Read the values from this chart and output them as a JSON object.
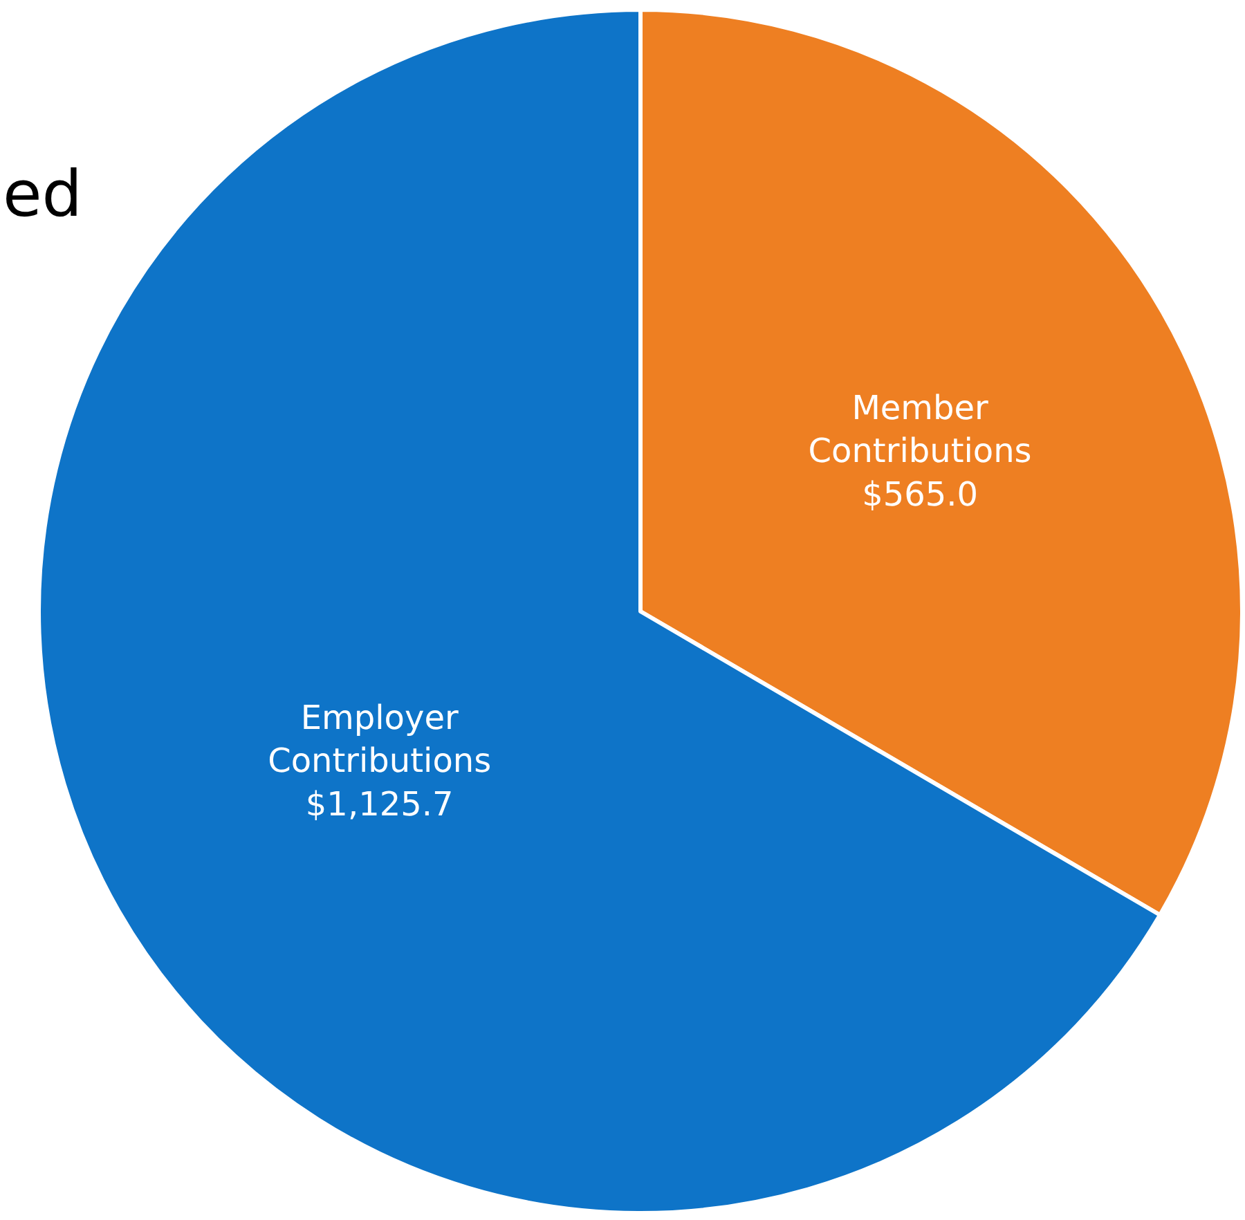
{
  "chart_data": {
    "type": "pie",
    "title": "ed",
    "categories": [
      "Member Contributions",
      "Employer Contributions"
    ],
    "values": [
      565.0,
      1125.7
    ],
    "colors": [
      "#ee7f22",
      "#0e74c8"
    ],
    "value_labels": [
      "$565.0",
      "$1,125.7"
    ],
    "legend": false
  }
}
